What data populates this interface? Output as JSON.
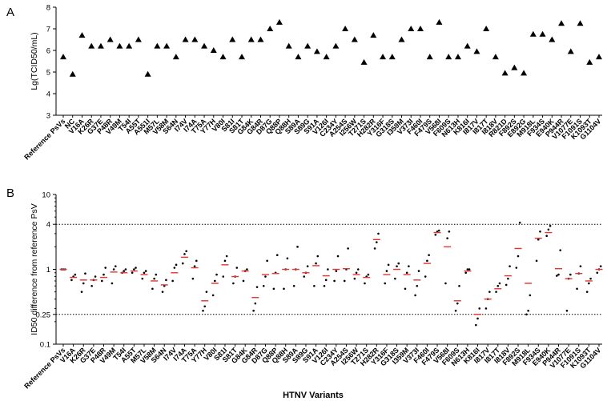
{
  "chart_data": [
    {
      "panel": "A",
      "type": "scatter",
      "marker": "triangle",
      "color": "#000000",
      "ylabel": "Lg(TCID50/mL)",
      "ylim": [
        3,
        8
      ],
      "yticks": [
        3,
        4,
        5,
        6,
        7,
        8
      ],
      "grid": false,
      "categories": [
        "Reference PsVs",
        "NC",
        "V16A",
        "K26R",
        "G37E",
        "P48R",
        "V49M",
        "T54I",
        "A55T",
        "A551I",
        "M57L",
        "V58M",
        "S64N",
        "I74V",
        "I74A",
        "T75A",
        "Y77H",
        "V80I",
        "S81I",
        "S81T",
        "G84K",
        "G84R",
        "D87G",
        "Q88P",
        "Q88H",
        "S89A",
        "S89G",
        "S91A",
        "V126I",
        "C234Y",
        "A254S",
        "I256W",
        "T271S",
        "H282R",
        "Y316F",
        "G318S",
        "I359M",
        "V373I",
        "F460I",
        "F479S",
        "V568I",
        "F609S",
        "N613H",
        "K816I",
        "I817V",
        "I817T",
        "I818V",
        "R821D",
        "F892S",
        "E892G",
        "M918L",
        "F934S",
        "E940K",
        "P944R",
        "V1077E",
        "F1091S",
        "K1093T",
        "G1104V"
      ],
      "values": [
        5.7,
        4.9,
        6.7,
        6.2,
        6.2,
        6.5,
        6.2,
        6.2,
        6.5,
        4.9,
        6.2,
        6.2,
        5.7,
        6.5,
        6.5,
        6.2,
        6.0,
        5.7,
        6.5,
        5.7,
        6.5,
        6.5,
        7.0,
        7.3,
        6.2,
        5.7,
        6.2,
        5.95,
        5.7,
        6.2,
        7.0,
        6.5,
        5.45,
        6.7,
        5.7,
        5.7,
        6.5,
        7.0,
        7.0,
        5.7,
        7.3,
        5.7,
        5.7,
        6.2,
        5.95,
        7.0,
        5.7,
        4.95,
        5.2,
        4.95,
        6.75,
        6.75,
        6.5,
        7.25,
        5.95,
        7.25,
        5.45,
        5.7
      ]
    },
    {
      "panel": "B",
      "type": "scatter",
      "scale": "log",
      "ylabel": "ID50 difference from reference PsV",
      "xlabel": "HTNV Variants",
      "ylim": [
        0.1,
        10
      ],
      "yticks": [
        "0.1",
        "0.25",
        "1",
        "4",
        "10"
      ],
      "reference_lines": [
        0.25,
        4
      ],
      "point_color": "#000000",
      "mean_color": "#e8322c",
      "categories": [
        "Reference PsVs",
        "V16A",
        "K26R",
        "G37E",
        "P48R",
        "V49M",
        "T54I",
        "A55T",
        "M57L",
        "V58M",
        "S64N",
        "I74V",
        "I74A",
        "T75A",
        "Y77H",
        "V80I",
        "S81I",
        "S81T",
        "G84K",
        "G84R",
        "D87G",
        "Q88P",
        "Q88H",
        "S89A",
        "S89G",
        "S91A",
        "V126I",
        "C234Y",
        "A254S",
        "I256W",
        "T271S",
        "H282R",
        "Y316F",
        "G318S",
        "I359M",
        "V373I",
        "F460I",
        "F479S",
        "V568I",
        "F609S",
        "N613H",
        "K816I",
        "I817V",
        "I817T",
        "I818V",
        "F892S",
        "M918L",
        "F934S",
        "E940K",
        "P944R",
        "V1077E",
        "F1091S",
        "K1093T",
        "G1104V"
      ],
      "means": [
        1.0,
        0.78,
        0.72,
        0.72,
        0.78,
        0.92,
        0.9,
        0.95,
        0.85,
        0.7,
        0.62,
        0.9,
        1.45,
        1.05,
        0.38,
        0.65,
        1.15,
        0.8,
        0.95,
        0.42,
        0.85,
        0.88,
        1.0,
        1.0,
        0.9,
        1.12,
        0.82,
        1.0,
        1.02,
        0.85,
        0.78,
        2.5,
        0.85,
        1.0,
        0.85,
        0.72,
        1.2,
        3.1,
        2.0,
        0.38,
        0.95,
        0.25,
        0.4,
        0.55,
        0.82,
        1.9,
        0.65,
        2.6,
        3.1,
        1.02,
        0.75,
        0.88,
        0.7,
        1.0
      ],
      "points": [
        [
          1,
          1,
          1
        ],
        [
          0.72,
          0.8,
          0.85
        ],
        [
          0.5,
          0.65,
          0.88
        ],
        [
          0.6,
          0.72,
          0.8
        ],
        [
          0.7,
          0.85,
          1.05
        ],
        [
          0.65,
          1.0,
          1.1
        ],
        [
          0.9,
          0.95,
          1.0
        ],
        [
          0.9,
          1.0,
          1.05
        ],
        [
          0.75,
          0.9,
          0.95
        ],
        [
          0.55,
          0.75,
          0.85
        ],
        [
          0.5,
          0.6,
          0.72
        ],
        [
          0.7,
          1.05,
          1.15
        ],
        [
          1.2,
          1.6,
          1.75
        ],
        [
          0.75,
          1.1,
          1.3
        ],
        [
          0.28,
          0.32,
          0.5
        ],
        [
          0.45,
          0.7,
          0.85
        ],
        [
          0.8,
          1.3,
          1.5
        ],
        [
          0.65,
          0.8,
          1.05
        ],
        [
          0.7,
          0.95,
          1.0
        ],
        [
          0.28,
          0.35,
          0.58
        ],
        [
          0.6,
          0.8,
          1.3
        ],
        [
          0.55,
          0.9,
          1.55
        ],
        [
          0.55,
          1.0,
          1.4
        ],
        [
          0.6,
          1.0,
          2.0
        ],
        [
          0.8,
          0.9,
          1.1
        ],
        [
          0.6,
          1.2,
          1.5
        ],
        [
          0.6,
          0.72,
          1.0
        ],
        [
          0.7,
          0.95,
          1.5
        ],
        [
          0.7,
          1.0,
          1.9
        ],
        [
          0.75,
          0.9,
          1.0
        ],
        [
          0.65,
          0.8,
          0.85
        ],
        [
          1.9,
          2.3,
          3.0
        ],
        [
          0.65,
          0.95,
          1.15
        ],
        [
          0.75,
          1.1,
          1.2
        ],
        [
          0.55,
          0.9,
          1.1
        ],
        [
          0.45,
          0.6,
          0.95
        ],
        [
          0.8,
          1.3,
          1.55
        ],
        [
          2.9,
          3.2,
          3.3
        ],
        [
          0.65,
          2.6,
          3.2
        ],
        [
          0.28,
          0.35,
          0.6
        ],
        [
          0.9,
          1.0,
          1.0
        ],
        [
          0.18,
          0.22,
          0.3
        ],
        [
          0.3,
          0.4,
          0.5
        ],
        [
          0.5,
          0.6,
          0.65
        ],
        [
          0.62,
          0.75,
          1.1
        ],
        [
          1.05,
          1.5,
          4.2
        ],
        [
          0.25,
          0.28,
          0.45
        ],
        [
          1.3,
          2.5,
          3.2
        ],
        [
          2.8,
          3.4,
          3.8
        ],
        [
          0.82,
          0.85,
          1.8
        ],
        [
          0.28,
          0.75,
          0.85
        ],
        [
          0.55,
          0.88,
          1.1
        ],
        [
          0.5,
          0.65,
          0.75
        ],
        [
          0.9,
          1.0,
          1.1
        ]
      ]
    }
  ]
}
